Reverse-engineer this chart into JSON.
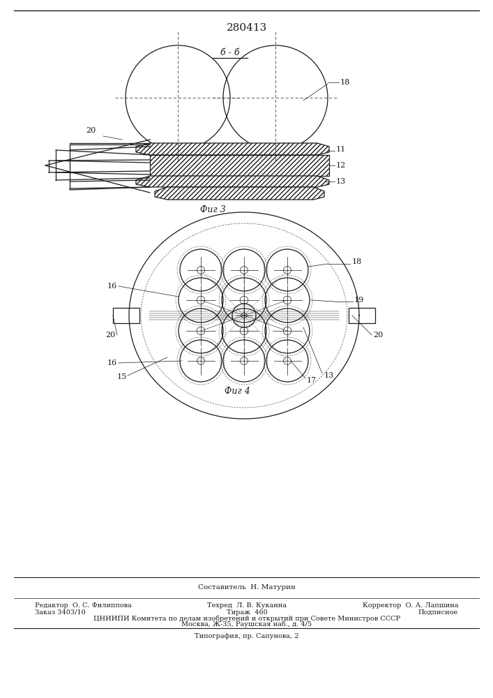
{
  "title": "280413",
  "fig3_label": "б - б",
  "fig3_caption": "Фиг 3",
  "fig4_caption": "Фиг 4",
  "footer_line1": "Составитель  Н. Матурин",
  "footer_line2_left": "Редактор  О. С. Филиппова",
  "footer_line2_mid": "Техред  Л. В. Куканна",
  "footer_line2_right": "Корректор  О. А. Лапшина",
  "footer_line3_left": "Заказ 3403/10",
  "footer_line3_mid": "Тираж  460",
  "footer_line3_right": "Подписное",
  "footer_line4": "ЦНИИПИ Комитета по делам изобретений и открытий при Совете Министров СССР",
  "footer_line5": "Москва, Ж-35, Раушская наб., д. 4/5",
  "footer_line6": "Типография, пр. Сапунова, 2",
  "bg_color": "#ffffff",
  "line_color": "#1a1a1a"
}
